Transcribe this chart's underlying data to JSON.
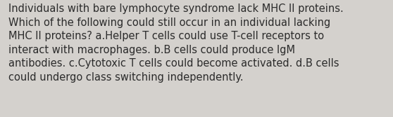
{
  "text": "Individuals with bare lymphocyte syndrome lack MHC II proteins.\nWhich of the following could still occur in an individual lacking\nMHC II proteins? a.Helper T cells could use T-cell receptors to\ninteract with macrophages. b.B cells could produce IgM\nantibodies. c.Cytotoxic T cells could become activated. d.B cells\ncould undergo class switching independently.",
  "background_color": "#d4d1cd",
  "text_color": "#2b2b2b",
  "font_size": 10.5,
  "fig_width": 5.58,
  "fig_height": 1.67,
  "dpi": 100
}
